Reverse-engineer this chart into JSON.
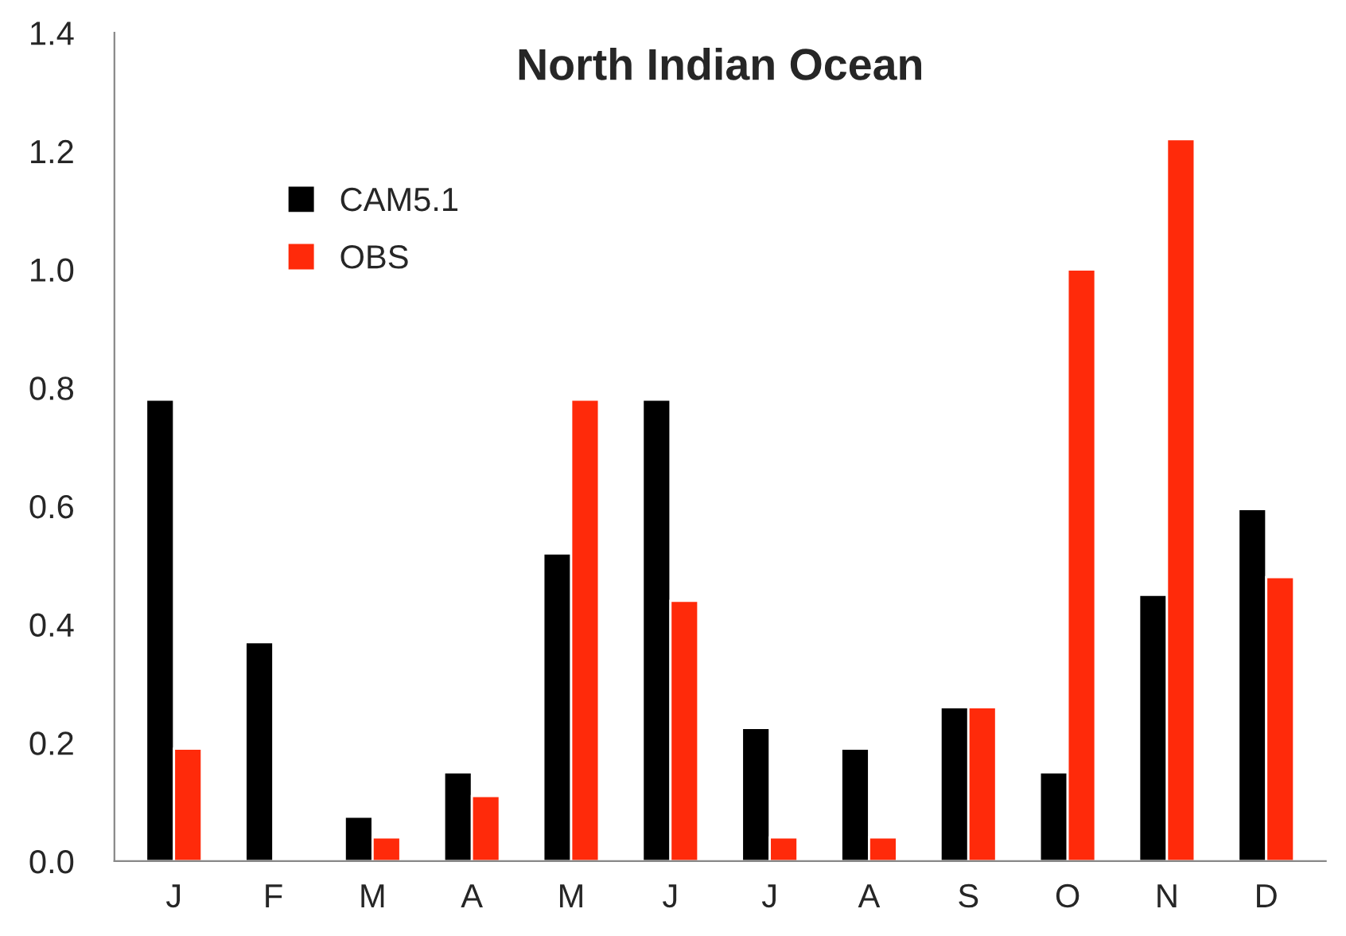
{
  "chart_data": {
    "type": "bar",
    "title": "North Indian Ocean",
    "categories": [
      "J",
      "F",
      "M",
      "A",
      "M",
      "J",
      "J",
      "A",
      "S",
      "O",
      "N",
      "D"
    ],
    "series": [
      {
        "name": "CAM5.1",
        "color": "#000000",
        "values": [
          0.78,
          0.37,
          0.075,
          0.15,
          0.52,
          0.78,
          0.225,
          0.19,
          0.26,
          0.15,
          0.45,
          0.595
        ]
      },
      {
        "name": "OBS",
        "color": "#ff2a0a",
        "values": [
          0.19,
          null,
          0.04,
          0.11,
          0.78,
          0.44,
          0.04,
          0.04,
          0.26,
          1.0,
          1.22,
          0.48
        ]
      }
    ],
    "ylim": [
      0,
      1.4
    ],
    "yticks": [
      {
        "value": 0,
        "label": "0.0"
      },
      {
        "value": 0.2,
        "label": "0.2"
      },
      {
        "value": 0.4,
        "label": "0.4"
      },
      {
        "value": 0.6,
        "label": "0.6"
      },
      {
        "value": 0.8,
        "label": "0.8"
      },
      {
        "value": 1.0,
        "label": "1.0"
      },
      {
        "value": 1.2,
        "label": "1.2"
      },
      {
        "value": 1.4,
        "label": "1.4"
      }
    ],
    "grid": false,
    "legend": "top left"
  }
}
